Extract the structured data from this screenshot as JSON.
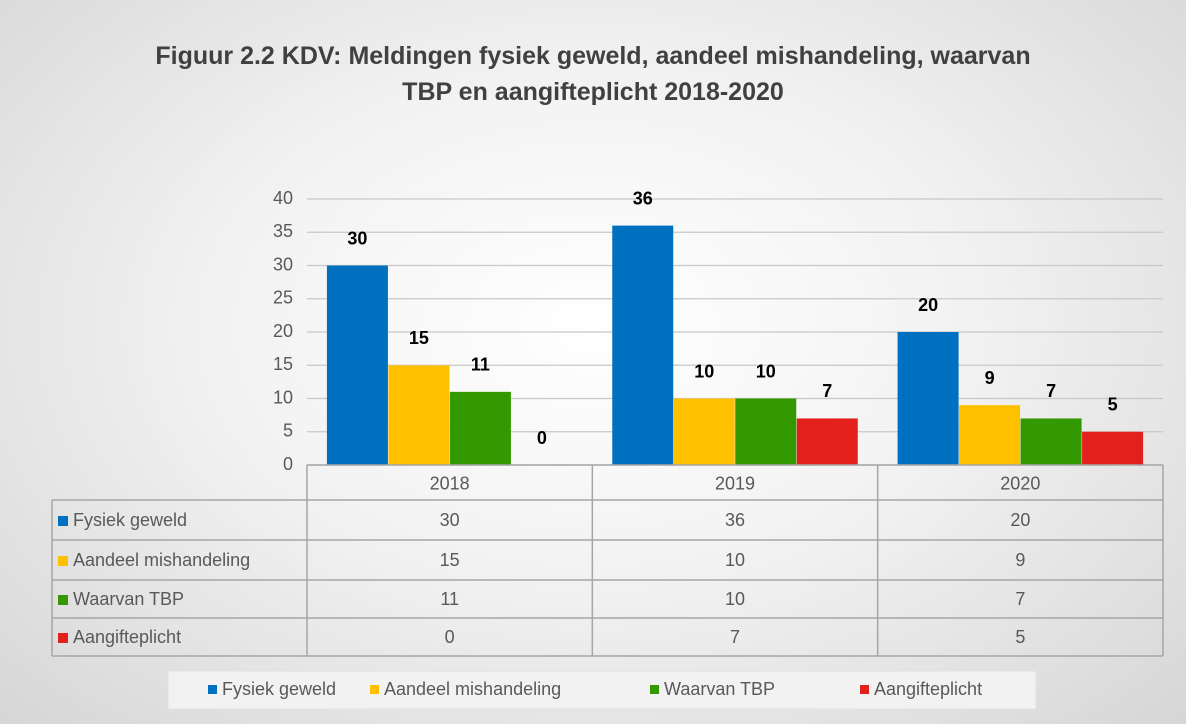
{
  "chart_data": {
    "type": "bar",
    "title": "Figuur 2.2 KDV: Meldingen fysiek geweld, aandeel mishandeling, waarvan TBP en aangifteplicht 2018-2020",
    "categories": [
      "2018",
      "2019",
      "2020"
    ],
    "series": [
      {
        "name": "Fysiek geweld",
        "color": "#0070c0",
        "values": [
          30,
          36,
          20
        ]
      },
      {
        "name": "Aandeel mishandeling",
        "color": "#ffc000",
        "values": [
          15,
          10,
          9
        ]
      },
      {
        "name": "Waarvan TBP",
        "color": "#339900",
        "values": [
          11,
          10,
          7
        ]
      },
      {
        "name": "Aangifteplicht",
        "color": "#e3211c",
        "values": [
          0,
          7,
          5
        ]
      }
    ],
    "ylim": [
      0,
      40
    ],
    "yticks": [
      0,
      5,
      10,
      15,
      20,
      25,
      30,
      35,
      40
    ],
    "grid": true,
    "legend": "bottom",
    "data_table": true
  }
}
